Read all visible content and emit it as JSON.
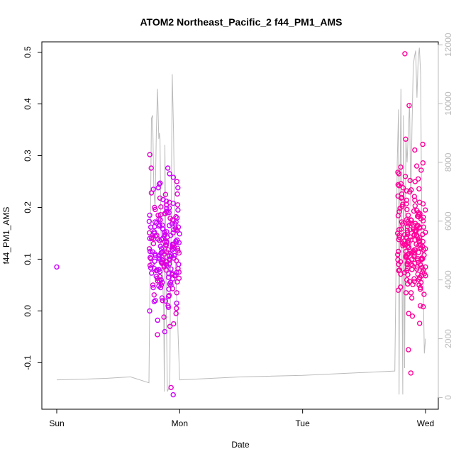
{
  "chart_data": {
    "type": "scatter",
    "title": "ATOM2 Northeast_Pacific_2 f44_PM1_AMS",
    "xlabel": "Date",
    "ylabel": "f44_PM1_AMS",
    "x_tick_labels": [
      "Sun",
      "Mon",
      "Tue",
      "Wed"
    ],
    "y_ticks": [
      -0.1,
      0.0,
      0.1,
      0.2,
      0.3,
      0.4,
      0.5
    ],
    "y_tick_labels": [
      "-0.1",
      "0.0",
      "0.1",
      "0.2",
      "0.3",
      "0.4",
      "0.5"
    ],
    "y2_ticks": [
      0,
      2000,
      4000,
      6000,
      8000,
      10000,
      12000
    ],
    "y2_tick_labels": [
      "0",
      "2000",
      "4000",
      "6000",
      "8000",
      "10000",
      "12000"
    ],
    "xlim_days": [
      0,
      3
    ],
    "ylim": [
      -0.19,
      0.52
    ],
    "y2lim": [
      -400,
      12100
    ],
    "colors": {
      "early": "#cc00ff",
      "late": "#ff0099",
      "line": "#bbbbbb"
    },
    "series": [
      {
        "name": "",
        "kind": "points",
        "x_days": [
          0.0
        ],
        "values": [
          0.085
        ]
      },
      {
        "name": "",
        "kind": "points",
        "cluster": [
          0.75,
          1.0
        ],
        "values": [
          0.302,
          0.276,
          0.247,
          0.245,
          0.238,
          0.225,
          0.212,
          0.205,
          0.198,
          0.192,
          0.186,
          0.18,
          0.175,
          0.172,
          0.168,
          0.165,
          0.162,
          0.158,
          0.155,
          0.152,
          0.148,
          0.145,
          0.142,
          0.14,
          0.138,
          0.135,
          0.132,
          0.13,
          0.127,
          0.124,
          0.12,
          0.118,
          0.115,
          0.112,
          0.11,
          0.108,
          0.105,
          0.102,
          0.1,
          0.098,
          0.095,
          0.092,
          0.09,
          0.087,
          0.085,
          0.082,
          0.078,
          0.075,
          0.072,
          0.07,
          0.065,
          0.06,
          0.055,
          0.05,
          0.045,
          0.042,
          0.035,
          0.028,
          0.02,
          0.015,
          0.005,
          -0.005,
          -0.012,
          -0.018,
          -0.025,
          -0.03,
          -0.04,
          -0.046,
          -0.148,
          -0.162,
          0.276,
          0.265,
          0.258,
          0.25,
          0.238,
          0.226,
          0.21,
          0.2,
          0.19,
          0.182,
          0.17,
          0.16,
          0.15,
          0.14,
          0.132,
          0.12,
          0.11,
          0.1,
          0.09,
          0.08,
          0.072,
          0.062,
          0.045,
          0.03,
          0.02,
          0.01,
          0.0,
          0.215,
          0.205,
          0.195,
          0.185,
          0.178,
          0.166,
          0.157,
          0.149,
          0.137,
          0.128,
          0.116,
          0.107,
          0.097,
          0.088,
          0.079,
          0.068,
          0.058,
          0.048,
          0.025,
          0.235,
          0.228,
          0.218,
          0.208,
          0.199,
          0.188,
          0.176,
          0.164,
          0.153,
          0.143,
          0.134,
          0.125,
          0.114,
          0.104,
          0.094,
          0.083,
          0.073,
          0.063,
          0.052,
          0.018,
          0.188,
          0.176,
          0.163,
          0.151,
          0.139,
          0.127,
          0.115,
          0.103,
          0.091,
          0.079,
          0.067,
          0.055,
          0.043,
          0.031,
          0.019,
          0.007,
          0.145,
          0.136,
          0.129,
          0.121,
          0.113,
          0.106,
          0.098,
          0.09,
          0.081,
          0.074,
          0.066,
          0.058,
          0.05,
          0.172,
          0.166,
          0.159,
          0.153,
          0.146,
          0.14,
          0.133,
          0.127,
          0.12,
          0.114,
          0.107,
          0.101,
          0.095,
          0.088,
          0.082,
          0.076,
          0.069,
          0.063,
          0.056,
          0.05,
          0.201,
          0.196,
          0.19,
          0.185,
          0.179,
          0.173,
          0.168,
          0.162,
          0.157,
          0.151,
          0.146,
          0.14,
          0.134,
          0.129,
          0.123,
          0.118,
          0.112,
          0.107,
          0.101,
          0.096
        ]
      },
      {
        "name": "",
        "kind": "points",
        "cluster": [
          2.77,
          3.0
        ],
        "values": [
          0.497,
          0.397,
          0.332,
          0.322,
          0.311,
          0.286,
          0.28,
          0.278,
          0.272,
          0.265,
          0.26,
          0.255,
          0.25,
          0.246,
          0.242,
          0.238,
          0.234,
          0.23,
          0.226,
          0.222,
          0.218,
          0.214,
          0.21,
          0.206,
          0.202,
          0.198,
          0.195,
          0.192,
          0.188,
          0.185,
          0.182,
          0.178,
          0.175,
          0.172,
          0.168,
          0.165,
          0.162,
          0.158,
          0.155,
          0.152,
          0.148,
          0.145,
          0.142,
          0.138,
          0.135,
          0.132,
          0.128,
          0.125,
          0.122,
          0.118,
          0.115,
          0.112,
          0.108,
          0.105,
          0.102,
          0.098,
          0.095,
          0.092,
          0.088,
          0.085,
          0.082,
          0.078,
          0.075,
          0.072,
          0.068,
          0.065,
          0.06,
          0.055,
          0.05,
          0.045,
          0.04,
          0.035,
          0.025,
          0.01,
          0.008,
          -0.005,
          -0.01,
          -0.024,
          -0.075,
          -0.12,
          0.268,
          0.252,
          0.236,
          0.221,
          0.207,
          0.193,
          0.181,
          0.169,
          0.157,
          0.146,
          0.134,
          0.123,
          0.112,
          0.101,
          0.09,
          0.079,
          0.068,
          0.057,
          0.046,
          0.035,
          0.244,
          0.232,
          0.219,
          0.207,
          0.196,
          0.186,
          0.176,
          0.166,
          0.156,
          0.147,
          0.137,
          0.128,
          0.118,
          0.109,
          0.1,
          0.09,
          0.081,
          0.071,
          0.062,
          0.052,
          0.214,
          0.203,
          0.194,
          0.184,
          0.174,
          0.165,
          0.155,
          0.146,
          0.136,
          0.127,
          0.118,
          0.108,
          0.099,
          0.089,
          0.08,
          0.07,
          0.061,
          0.051,
          0.042,
          0.032,
          0.19,
          0.183,
          0.176,
          0.169,
          0.162,
          0.155,
          0.148,
          0.141,
          0.134,
          0.127,
          0.12,
          0.113,
          0.106,
          0.099,
          0.092,
          0.085,
          0.078,
          0.071,
          0.064,
          0.057,
          0.173,
          0.168,
          0.163,
          0.158,
          0.152,
          0.147,
          0.142,
          0.137,
          0.131,
          0.126,
          0.121,
          0.116,
          0.11,
          0.105,
          0.1,
          0.095,
          0.089,
          0.084,
          0.079,
          0.074,
          0.16,
          0.157,
          0.153,
          0.15,
          0.146,
          0.143,
          0.139,
          0.136,
          0.132,
          0.129,
          0.125,
          0.122,
          0.118,
          0.115,
          0.111,
          0.108,
          0.104,
          0.101,
          0.097,
          0.094
        ]
      },
      {
        "name": "",
        "kind": "line",
        "axis": "right",
        "x_days": [
          0.0,
          0.2,
          0.4,
          0.6,
          0.75,
          0.77,
          0.78,
          0.79,
          0.8,
          0.81,
          0.82,
          0.83,
          0.835,
          0.84,
          0.85,
          0.86,
          0.87,
          0.875,
          0.88,
          0.89,
          0.9,
          0.91,
          0.92,
          0.925,
          0.93,
          0.94,
          0.95,
          0.96,
          0.97,
          0.98,
          1.0,
          1.5,
          2.0,
          2.5,
          2.75,
          2.77,
          2.78,
          2.785,
          2.79,
          2.8,
          2.81,
          2.815,
          2.82,
          2.83,
          2.84,
          2.85,
          2.86,
          2.87,
          2.88,
          2.89,
          2.9,
          2.91,
          2.92,
          2.93,
          2.94,
          2.95,
          2.96,
          2.97,
          2.98,
          2.99,
          3.0
        ],
        "values": [
          600,
          620,
          650,
          700,
          500,
          9500,
          9600,
          7000,
          6500,
          9000,
          10500,
          8800,
          9000,
          8800,
          5000,
          4200,
          3000,
          200,
          8600,
          3500,
          200,
          300,
          600,
          4000,
          5500,
          11000,
          9000,
          6000,
          4000,
          3000,
          600,
          700,
          750,
          850,
          900,
          8000,
          9800,
          100,
          6000,
          10500,
          3000,
          100,
          9600,
          1000,
          8800,
          8000,
          9000,
          10000,
          6500,
          9200,
          11300,
          11600,
          11800,
          10200,
          11500,
          11900,
          11000,
          5500,
          4200,
          1500,
          2000
        ]
      }
    ]
  }
}
